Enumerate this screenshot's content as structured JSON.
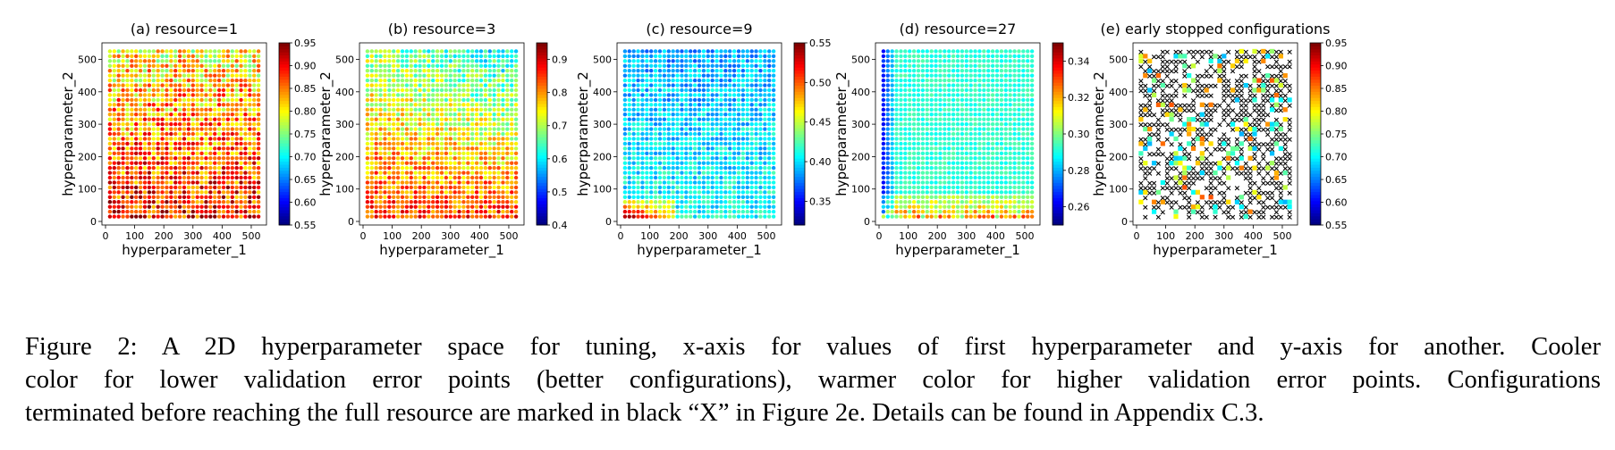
{
  "figure": {
    "panels": [
      {
        "title": "(a) resource=1",
        "colorbar_ticks": [
          "0.55",
          "0.60",
          "0.65",
          "0.70",
          "0.75",
          "0.80",
          "0.85",
          "0.90",
          "0.95"
        ]
      },
      {
        "title": "(b) resource=3",
        "colorbar_ticks": [
          "0.4",
          "0.5",
          "0.6",
          "0.7",
          "0.8",
          "0.9"
        ]
      },
      {
        "title": "(c) resource=9",
        "colorbar_ticks": [
          "0.35",
          "0.40",
          "0.45",
          "0.50",
          "0.55"
        ]
      },
      {
        "title": "(d) resource=27",
        "colorbar_ticks": [
          "0.26",
          "0.28",
          "0.30",
          "0.32",
          "0.34"
        ]
      },
      {
        "title": "(e) early stopped configurations",
        "colorbar_ticks": [
          "0.55",
          "0.60",
          "0.65",
          "0.70",
          "0.75",
          "0.80",
          "0.85",
          "0.90",
          "0.95"
        ]
      }
    ],
    "xlabel": "hyperparameter_1",
    "ylabel": "hyperparameter_2",
    "xticks": [
      "0",
      "100",
      "200",
      "300",
      "400",
      "500"
    ],
    "yticks": [
      "0",
      "100",
      "200",
      "300",
      "400",
      "500"
    ]
  },
  "chart_data": [
    {
      "type": "scatter",
      "title": "(a) resource=1",
      "xlabel": "hyperparameter_1",
      "ylabel": "hyperparameter_2",
      "xlim": [
        0,
        540
      ],
      "ylim": [
        0,
        540
      ],
      "colorbar_range": [
        0.55,
        0.95
      ],
      "grid": false,
      "colormap": "jet",
      "grid_points": {
        "x_start": 15,
        "x_end": 525,
        "step": 15,
        "y_start": 15,
        "y_end": 525
      },
      "pattern": "mostly 0.75-0.90 (yellow/orange/red), warmer at low hyperparameter_2"
    },
    {
      "type": "scatter",
      "title": "(b) resource=3",
      "xlabel": "hyperparameter_1",
      "ylabel": "hyperparameter_2",
      "xlim": [
        0,
        540
      ],
      "ylim": [
        0,
        540
      ],
      "colorbar_range": [
        0.4,
        0.95
      ],
      "grid": false,
      "colormap": "jet",
      "pattern": "mostly 0.6-0.75 (cyan/green), lower (blue) at top right, higher at bottom"
    },
    {
      "type": "scatter",
      "title": "(c) resource=9",
      "xlabel": "hyperparameter_1",
      "ylabel": "hyperparameter_2",
      "xlim": [
        0,
        540
      ],
      "ylim": [
        0,
        540
      ],
      "colorbar_range": [
        0.32,
        0.55
      ],
      "grid": false,
      "colormap": "jet",
      "pattern": "mostly 0.38-0.42 (blue/cyan), dark red near bottom-left"
    },
    {
      "type": "scatter",
      "title": "(d) resource=27",
      "xlabel": "hyperparameter_1",
      "ylabel": "hyperparameter_2",
      "xlim": [
        0,
        540
      ],
      "ylim": [
        0,
        540
      ],
      "colorbar_range": [
        0.25,
        0.35
      ],
      "grid": false,
      "colormap": "jet",
      "pattern": "dark blue at small hyperparameter_1, cyan elsewhere, yellow/red near bottom"
    },
    {
      "type": "scatter",
      "title": "(e) early stopped configurations",
      "xlabel": "hyperparameter_1",
      "ylabel": "hyperparameter_2",
      "xlim": [
        0,
        540
      ],
      "ylim": [
        0,
        540
      ],
      "colorbar_range": [
        0.55,
        0.95
      ],
      "grid": false,
      "colormap": "jet",
      "marker": "square",
      "early_stopped_marker": "black x",
      "pattern": "mostly black x markers, sparse colored squares of surviving configurations"
    }
  ],
  "caption": {
    "lines": [
      "Figure 2: A 2D hyperparameter space for tuning, x-axis for values of first hyperparameter and y-axis for another. Cooler",
      "color for lower validation error points (better configurations), warmer color for higher validation error points. Configurations",
      "terminated before reaching the full resource are marked in black “X” in Figure 2e. Details can be found in Appendix C.3."
    ]
  }
}
